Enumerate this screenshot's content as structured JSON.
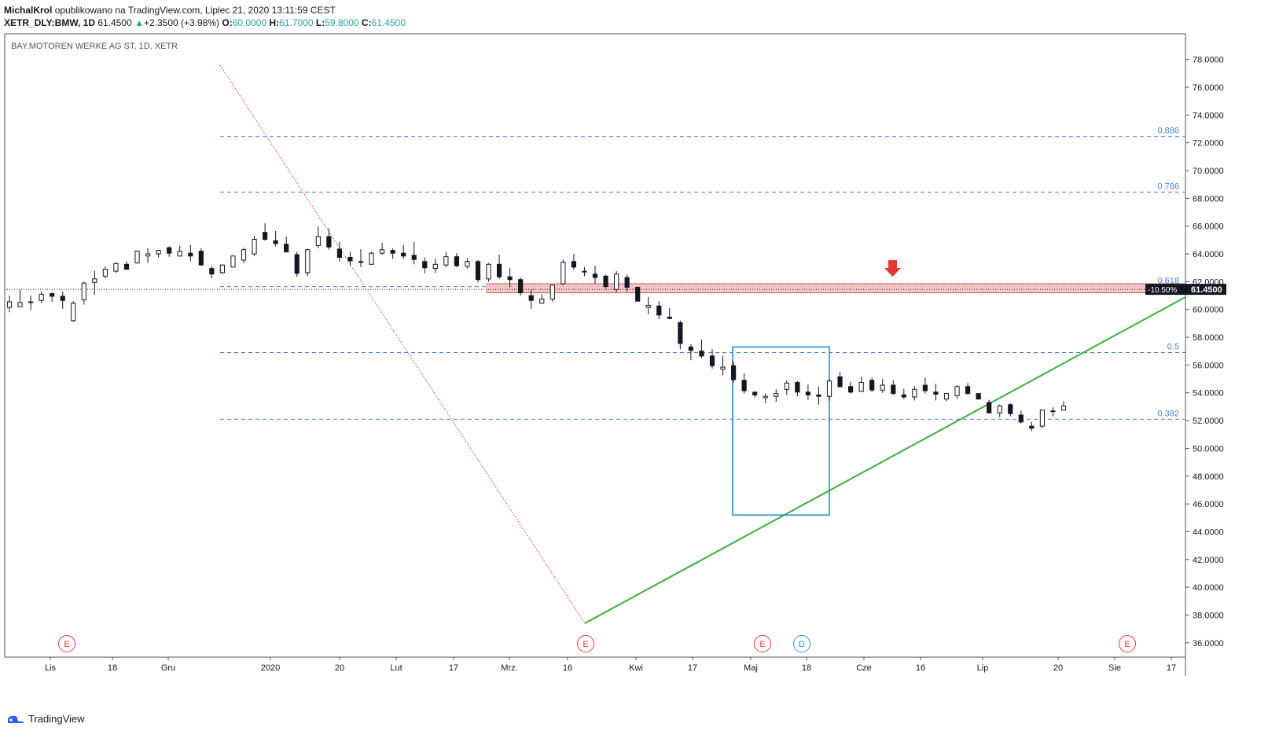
{
  "header": {
    "author": "MichalKrol",
    "published": "opublikowano na TradingView.com, Lipiec 21, 2020 13:11:59 CEST",
    "symbol": "XETR_DLY:BMW, 1D",
    "last": "61.4500",
    "change": "+2.3500 (+3.98%)",
    "o_label": "O:",
    "o": "60.0000",
    "h_label": "H:",
    "h": "61.7000",
    "l_label": "L:",
    "l": "59.8000",
    "c_label": "C:",
    "c": "61.4500"
  },
  "footer": {
    "brand": "TradingView"
  },
  "chart_data": {
    "type": "candlestick",
    "title": "BAY.MOTOREN WERKE AG ST, 1D, XETR",
    "ylim": [
      35.0,
      79.0
    ],
    "y_ticks": [
      "36.0000",
      "38.0000",
      "40.0000",
      "42.0000",
      "44.0000",
      "46.0000",
      "48.0000",
      "50.0000",
      "52.0000",
      "54.0000",
      "56.0000",
      "58.0000",
      "60.0000",
      "62.0000",
      "64.0000",
      "66.0000",
      "68.0000",
      "70.0000",
      "72.0000",
      "74.0000",
      "76.0000",
      "78.0000"
    ],
    "x_ticks": [
      "Lis",
      "18",
      "Gru",
      "2020",
      "20",
      "Lut",
      "17",
      "Mrz.",
      "16",
      "Kwi",
      "17",
      "Maj",
      "18",
      "Cze",
      "16",
      "Lip",
      "20",
      "Sie",
      "17"
    ],
    "last_price_label": "61.4500",
    "last_price": 61.45,
    "pct_label": "-10.50%",
    "fib_levels": [
      {
        "label": "0.886",
        "value": 72.45
      },
      {
        "label": "0.786",
        "value": 68.45
      },
      {
        "label": "0.618",
        "value": 61.65
      },
      {
        "label": "0.5",
        "value": 56.9
      },
      {
        "label": "0.382",
        "value": 52.1
      }
    ],
    "resistance_zone": [
      61.2,
      61.85
    ],
    "rectangle": {
      "price_top": 57.3,
      "price_bottom": 45.2
    },
    "event_markers": [
      "E",
      "E",
      "E",
      "D",
      "E"
    ],
    "colors": {
      "fib": "#4a7fd4",
      "trendline": "#3cae3c",
      "diagonal": "#e53935",
      "zone": "#f4c2c0",
      "zone_line": "#d9534f",
      "box": "#2b8ad8",
      "arrow": "#e53935",
      "candle_up": "#ffffff",
      "candle_down": "#131722"
    },
    "candles": [
      [
        60.15,
        61.0,
        59.8,
        60.55
      ],
      [
        60.2,
        61.4,
        60.15,
        60.5
      ],
      [
        60.55,
        61.0,
        59.95,
        60.5
      ],
      [
        60.65,
        61.3,
        60.45,
        61.1
      ],
      [
        61.15,
        61.2,
        60.55,
        60.95
      ],
      [
        60.95,
        61.3,
        60.05,
        60.65
      ],
      [
        59.2,
        60.6,
        59.1,
        60.45
      ],
      [
        60.7,
        62.0,
        60.35,
        61.9
      ],
      [
        61.95,
        62.8,
        61.05,
        62.2
      ],
      [
        62.4,
        63.1,
        62.25,
        62.9
      ],
      [
        62.75,
        63.4,
        62.65,
        63.3
      ],
      [
        63.25,
        63.45,
        62.85,
        62.9
      ],
      [
        63.35,
        64.25,
        63.3,
        64.2
      ],
      [
        63.85,
        64.4,
        63.35,
        64.0
      ],
      [
        64.0,
        64.3,
        63.75,
        64.25
      ],
      [
        64.45,
        64.55,
        63.8,
        64.05
      ],
      [
        63.85,
        64.6,
        63.8,
        64.2
      ],
      [
        64.05,
        64.65,
        63.45,
        63.85
      ],
      [
        64.2,
        64.4,
        63.15,
        63.2
      ],
      [
        62.95,
        63.15,
        62.25,
        62.55
      ],
      [
        62.65,
        63.25,
        62.55,
        63.2
      ],
      [
        63.05,
        63.9,
        63.05,
        63.85
      ],
      [
        63.55,
        64.45,
        63.35,
        64.3
      ],
      [
        64.0,
        65.3,
        63.85,
        65.05
      ],
      [
        65.55,
        66.2,
        64.95,
        65.05
      ],
      [
        64.95,
        65.65,
        64.55,
        64.75
      ],
      [
        64.7,
        65.25,
        64.1,
        64.15
      ],
      [
        63.95,
        64.15,
        62.35,
        62.6
      ],
      [
        62.65,
        64.4,
        62.4,
        64.3
      ],
      [
        64.6,
        66.0,
        64.4,
        65.25
      ],
      [
        65.25,
        65.85,
        64.3,
        64.5
      ],
      [
        64.35,
        64.85,
        63.45,
        63.75
      ],
      [
        63.75,
        64.15,
        63.15,
        63.5
      ],
      [
        63.45,
        64.35,
        63.05,
        63.4
      ],
      [
        63.25,
        64.15,
        63.25,
        64.05
      ],
      [
        64.05,
        64.8,
        63.95,
        64.3
      ],
      [
        64.25,
        64.4,
        63.65,
        64.05
      ],
      [
        64.05,
        64.65,
        63.65,
        63.85
      ],
      [
        63.9,
        64.85,
        63.25,
        63.6
      ],
      [
        63.45,
        63.75,
        62.6,
        63.0
      ],
      [
        62.95,
        63.65,
        62.65,
        63.25
      ],
      [
        63.2,
        64.15,
        63.05,
        63.8
      ],
      [
        63.8,
        64.05,
        63.05,
        63.15
      ],
      [
        63.1,
        63.7,
        62.95,
        63.45
      ],
      [
        63.45,
        63.55,
        61.95,
        62.15
      ],
      [
        62.2,
        63.35,
        62.0,
        63.25
      ],
      [
        63.25,
        63.95,
        62.2,
        62.35
      ],
      [
        62.35,
        63.0,
        61.6,
        62.15
      ],
      [
        62.15,
        62.3,
        61.0,
        61.2
      ],
      [
        61.0,
        61.45,
        60.05,
        60.65
      ],
      [
        60.45,
        61.1,
        60.45,
        60.75
      ],
      [
        60.75,
        61.75,
        60.55,
        61.75
      ],
      [
        61.85,
        63.6,
        61.75,
        63.4
      ],
      [
        63.45,
        64.0,
        62.85,
        63.05
      ],
      [
        62.75,
        63.05,
        62.4,
        62.75
      ],
      [
        62.55,
        63.15,
        61.85,
        62.3
      ],
      [
        62.4,
        62.5,
        61.5,
        61.65
      ],
      [
        61.45,
        62.75,
        61.25,
        62.55
      ],
      [
        62.3,
        62.5,
        61.3,
        61.6
      ],
      [
        61.6,
        61.65,
        60.55,
        60.6
      ],
      [
        60.15,
        60.9,
        59.65,
        60.3
      ],
      [
        60.25,
        60.6,
        59.3,
        59.6
      ],
      [
        59.45,
        60.1,
        59.3,
        59.35
      ],
      [
        59.05,
        59.2,
        57.15,
        57.55
      ],
      [
        57.3,
        57.5,
        56.35,
        57.05
      ],
      [
        57.0,
        57.85,
        56.5,
        56.65
      ],
      [
        56.65,
        57.15,
        55.75,
        55.95
      ],
      [
        55.7,
        56.65,
        55.25,
        55.85
      ],
      [
        55.95,
        56.25,
        54.75,
        54.95
      ],
      [
        54.9,
        55.4,
        53.95,
        54.15
      ],
      [
        54.05,
        54.1,
        53.65,
        53.85
      ],
      [
        53.65,
        53.95,
        53.25,
        53.75
      ],
      [
        53.75,
        54.25,
        53.35,
        53.95
      ],
      [
        54.25,
        54.9,
        53.85,
        54.7
      ],
      [
        54.75,
        54.85,
        53.75,
        54.05
      ],
      [
        54.05,
        54.6,
        53.5,
        53.85
      ],
      [
        53.85,
        54.45,
        53.15,
        53.75
      ],
      [
        53.75,
        55.0,
        53.45,
        54.85
      ],
      [
        55.15,
        55.5,
        54.35,
        54.45
      ],
      [
        54.45,
        54.8,
        53.95,
        54.05
      ],
      [
        54.1,
        55.15,
        54.05,
        54.75
      ],
      [
        54.9,
        55.1,
        54.05,
        54.2
      ],
      [
        54.2,
        55.0,
        54.0,
        54.55
      ],
      [
        54.55,
        54.9,
        53.85,
        53.95
      ],
      [
        53.85,
        54.3,
        53.55,
        53.7
      ],
      [
        53.7,
        54.5,
        53.45,
        54.25
      ],
      [
        54.55,
        55.1,
        53.95,
        54.15
      ],
      [
        54.05,
        54.65,
        53.45,
        53.9
      ],
      [
        53.55,
        54.0,
        53.4,
        53.95
      ],
      [
        53.8,
        54.55,
        53.55,
        54.45
      ],
      [
        54.45,
        54.7,
        53.85,
        53.95
      ],
      [
        53.95,
        53.95,
        53.55,
        53.55
      ],
      [
        53.3,
        53.5,
        52.55,
        52.55
      ],
      [
        52.55,
        53.15,
        52.25,
        53.05
      ],
      [
        53.15,
        53.25,
        52.3,
        52.5
      ],
      [
        52.4,
        52.7,
        51.8,
        51.9
      ],
      [
        51.6,
        51.9,
        51.25,
        51.45
      ],
      [
        51.6,
        52.8,
        51.45,
        52.75
      ],
      [
        52.7,
        52.95,
        52.3,
        52.65
      ],
      [
        52.75,
        53.4,
        52.75,
        53.05
      ]
    ]
  }
}
